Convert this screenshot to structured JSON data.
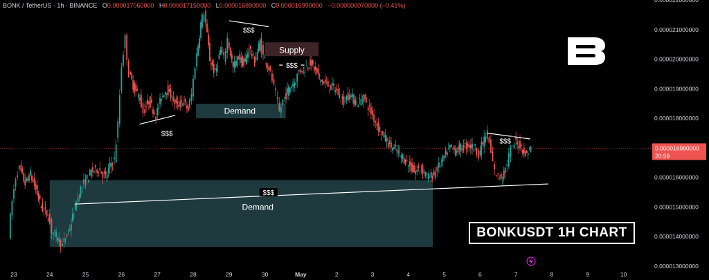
{
  "header": {
    "symbol": "BONK / TetherUS · 1h · BINANCE",
    "o_label": "O",
    "o": "0.000017060000",
    "h_label": "H",
    "h": "0.000017150000",
    "l_label": "L",
    "l": "0.000016890000",
    "c_label": "C",
    "c": "0.000016990000",
    "change": "−0.000000070000 (−0.41%)"
  },
  "badge_text": "BONKUSDT 1H CHART",
  "logo_icon": "brand-b-logo-icon",
  "colors": {
    "up": "#26a69a",
    "down": "#ef5350",
    "bg": "#000000",
    "zone": "#1e3a3e",
    "supply": "#3d2426",
    "price_tag": "#ef5350"
  },
  "chart_data": {
    "type": "candlestick",
    "title": "",
    "xlabel": "",
    "ylabel": "",
    "ylim": [
      1.28e-05,
      2.21e-05
    ],
    "x_ticks": [
      "23",
      "24",
      "25",
      "26",
      "27",
      "28",
      "29",
      "30",
      "May",
      "2",
      "3",
      "4",
      "5",
      "6",
      "7",
      "8",
      "9",
      "10"
    ],
    "y_ticks": [
      "0.000013000000",
      "0.000014000000",
      "0.000015000000",
      "0.000016000000",
      "0.000017000000",
      "0.000018000000",
      "0.000019000000",
      "0.000020000000",
      "0.000021000000",
      "0.000022000000"
    ],
    "last_price": {
      "value": "0.000016990000",
      "countdown": "20:59"
    },
    "price_path": [
      [
        22.9,
        1.41e-05
      ],
      [
        23.0,
        1.52e-05
      ],
      [
        23.1,
        1.6e-05
      ],
      [
        23.2,
        1.63e-05
      ],
      [
        23.35,
        1.58e-05
      ],
      [
        23.5,
        1.61e-05
      ],
      [
        23.65,
        1.56e-05
      ],
      [
        23.8,
        1.5e-05
      ],
      [
        24.0,
        1.47e-05
      ],
      [
        24.1,
        1.42e-05
      ],
      [
        24.3,
        1.39e-05
      ],
      [
        24.4,
        1.37e-05
      ],
      [
        24.6,
        1.43e-05
      ],
      [
        24.75,
        1.5e-05
      ],
      [
        24.9,
        1.56e-05
      ],
      [
        25.0,
        1.58e-05
      ],
      [
        25.2,
        1.62e-05
      ],
      [
        25.4,
        1.63e-05
      ],
      [
        25.6,
        1.6e-05
      ],
      [
        25.75,
        1.65e-05
      ],
      [
        25.85,
        1.66e-05
      ],
      [
        25.95,
        1.78e-05
      ],
      [
        26.05,
        1.98e-05
      ],
      [
        26.15,
        2.07e-05
      ],
      [
        26.25,
        1.95e-05
      ],
      [
        26.4,
        1.9e-05
      ],
      [
        26.55,
        1.87e-05
      ],
      [
        26.65,
        1.82e-05
      ],
      [
        26.8,
        1.86e-05
      ],
      [
        27.0,
        1.81e-05
      ],
      [
        27.15,
        1.87e-05
      ],
      [
        27.3,
        1.9e-05
      ],
      [
        27.45,
        1.87e-05
      ],
      [
        27.6,
        1.84e-05
      ],
      [
        27.75,
        1.86e-05
      ],
      [
        27.9,
        1.83e-05
      ],
      [
        28.0,
        1.88e-05
      ],
      [
        28.1,
        1.98e-05
      ],
      [
        28.25,
        2.12e-05
      ],
      [
        28.35,
        2.16e-05
      ],
      [
        28.5,
        2e-05
      ],
      [
        28.65,
        1.95e-05
      ],
      [
        28.8,
        2.03e-05
      ],
      [
        28.9,
        2e-05
      ],
      [
        29.0,
        2.07e-05
      ],
      [
        29.15,
        1.97e-05
      ],
      [
        29.3,
        2.01e-05
      ],
      [
        29.45,
        1.98e-05
      ],
      [
        29.6,
        2.04e-05
      ],
      [
        29.75,
        1.99e-05
      ],
      [
        29.9,
        2.06e-05
      ],
      [
        30.0,
        2.01e-05
      ],
      [
        30.15,
        1.97e-05
      ],
      [
        30.25,
        1.93e-05
      ],
      [
        30.35,
        1.88e-05
      ],
      [
        30.45,
        1.82e-05
      ],
      [
        30.55,
        1.86e-05
      ],
      [
        30.7,
        1.9e-05
      ],
      [
        30.9,
        1.93e-05
      ],
      [
        31.0,
        1.96e-05
      ],
      [
        31.15,
        1.97e-05
      ],
      [
        31.3,
        1.99e-05
      ],
      [
        31.45,
        1.96e-05
      ],
      [
        31.6,
        1.93e-05
      ],
      [
        31.8,
        1.91e-05
      ],
      [
        32.0,
        1.9e-05
      ],
      [
        32.2,
        1.86e-05
      ],
      [
        32.4,
        1.88e-05
      ],
      [
        32.6,
        1.85e-05
      ],
      [
        32.8,
        1.87e-05
      ],
      [
        33.0,
        1.82e-05
      ],
      [
        33.2,
        1.77e-05
      ],
      [
        33.4,
        1.73e-05
      ],
      [
        33.6,
        1.7e-05
      ],
      [
        33.8,
        1.68e-05
      ],
      [
        34.0,
        1.65e-05
      ],
      [
        34.2,
        1.62e-05
      ],
      [
        34.4,
        1.63e-05
      ],
      [
        34.6,
        1.6e-05
      ],
      [
        34.75,
        1.61e-05
      ],
      [
        34.85,
        1.63e-05
      ],
      [
        35.0,
        1.66e-05
      ],
      [
        35.2,
        1.7e-05
      ],
      [
        35.35,
        1.69e-05
      ],
      [
        35.5,
        1.7e-05
      ],
      [
        35.7,
        1.71e-05
      ],
      [
        35.9,
        1.7e-05
      ],
      [
        36.0,
        1.68e-05
      ],
      [
        36.15,
        1.73e-05
      ],
      [
        36.25,
        1.75e-05
      ],
      [
        36.35,
        1.68e-05
      ],
      [
        36.45,
        1.62e-05
      ],
      [
        36.55,
        1.6e-05
      ],
      [
        36.7,
        1.61e-05
      ],
      [
        36.8,
        1.65e-05
      ],
      [
        36.9,
        1.7e-05
      ],
      [
        37.0,
        1.72e-05
      ],
      [
        37.15,
        1.71e-05
      ],
      [
        37.3,
        1.68e-05
      ],
      [
        37.45,
        1.7e-05
      ]
    ],
    "annotations": [
      {
        "text": "Supply",
        "kind": "zone"
      },
      {
        "text": "Demand",
        "kind": "zone"
      },
      {
        "text": "Demand",
        "kind": "zone"
      },
      {
        "text": "$$$",
        "kind": "liquidity"
      },
      {
        "text": "$$$",
        "kind": "liquidity"
      },
      {
        "text": "$$$",
        "kind": "liquidity"
      },
      {
        "text": "$$$",
        "kind": "liquidity"
      },
      {
        "text": "$$$",
        "kind": "liquidity"
      }
    ]
  }
}
